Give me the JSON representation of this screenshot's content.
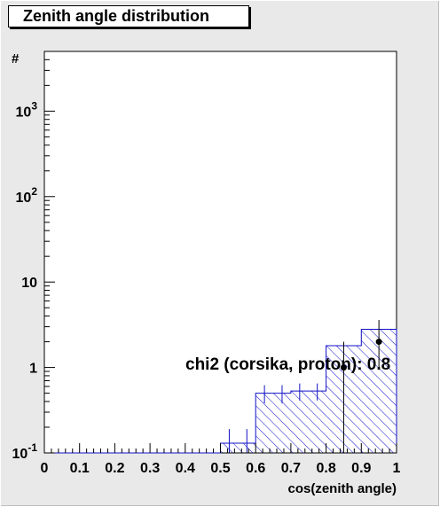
{
  "chart_data": {
    "type": "bar",
    "title": "Zenith angle distribution",
    "xlabel": "cos(zenith angle)",
    "ylabel": "#",
    "xlim": [
      0,
      1
    ],
    "ylim": [
      0.1,
      5000
    ],
    "yscale": "log",
    "x_ticks": [
      "0",
      "0.1",
      "0.2",
      "0.3",
      "0.4",
      "0.5",
      "0.6",
      "0.7",
      "0.8",
      "0.9",
      "1"
    ],
    "y_ticks": [
      {
        "value": 0.1,
        "base": "10",
        "exp": "-1"
      },
      {
        "value": 1,
        "base": "1",
        "exp": ""
      },
      {
        "value": 10,
        "base": "10",
        "exp": ""
      },
      {
        "value": 100,
        "base": "10",
        "exp": "2"
      },
      {
        "value": 1000,
        "base": "10",
        "exp": "3"
      }
    ],
    "bin_edges": [
      0,
      0.05,
      0.1,
      0.15,
      0.2,
      0.25,
      0.3,
      0.35,
      0.4,
      0.45,
      0.5,
      0.55,
      0.6,
      0.65,
      0.7,
      0.75,
      0.8,
      0.85,
      0.9,
      0.95,
      1.0
    ],
    "series": [
      {
        "style": "hatched-histogram",
        "values": [
          0,
          0,
          0,
          0,
          0,
          0,
          0,
          0,
          0,
          0,
          0.13,
          0.13,
          0.5,
          0.5,
          0.53,
          0.53,
          1.8,
          1.8,
          2.8,
          2.8
        ],
        "errors": [
          0,
          0,
          0,
          0,
          0,
          0,
          0,
          0,
          0,
          0,
          0.06,
          0.06,
          0.12,
          0.12,
          0.12,
          0.12,
          0,
          0,
          0,
          0
        ]
      },
      {
        "style": "points",
        "x": [
          0.85,
          0.95
        ],
        "values": [
          1.0,
          2.0
        ],
        "errors_low": [
          0.9,
          1.0
        ],
        "errors_high": [
          1.0,
          1.6
        ]
      }
    ],
    "annotation": "chi2 (corsika, proton): 0.8",
    "grid": false,
    "legend": "none",
    "colors": {
      "histogram": "#1010c8",
      "points": "#000000",
      "background": "#e9e9e9",
      "frame": "#ffffff"
    }
  }
}
